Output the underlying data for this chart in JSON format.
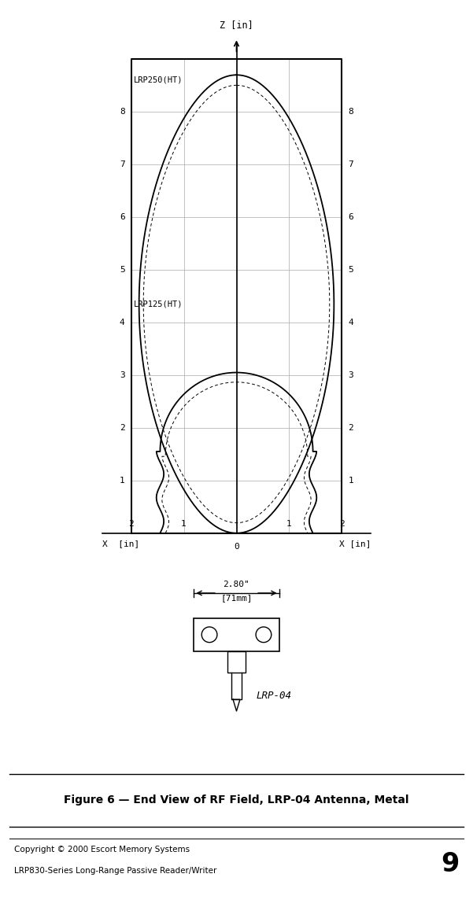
{
  "bg_color": "#ffffff",
  "grid_color": "#aaaaaa",
  "axis_color": "#000000",
  "line_color": "#000000",
  "figure_caption": "Figure 6 — End View of RF Field, LRP-04 Antenna, Metal",
  "copyright_text": "Copyright © 2000 Escort Memory Systems\nLRP830-Series Long-Range Passive Reader/Writer",
  "page_number": "9",
  "z_label": "Z [in]",
  "x_label_left": "X  [in]",
  "x_label_right": "X [in]",
  "x_ticks": [
    -2,
    -1,
    0,
    1,
    2
  ],
  "x_tick_labels": [
    "2",
    "1",
    "0",
    "1",
    "2"
  ],
  "z_ticks": [
    1,
    2,
    3,
    4,
    5,
    6,
    7,
    8
  ],
  "label_lrp250": "LRP250(HT)",
  "label_lrp125": "LRP125(HT)",
  "dim_text_line1": "2.80\"",
  "dim_text_line2": "[71mm]",
  "lrp04_label": "LRP-04",
  "caption_bg": "#e0e0e0"
}
